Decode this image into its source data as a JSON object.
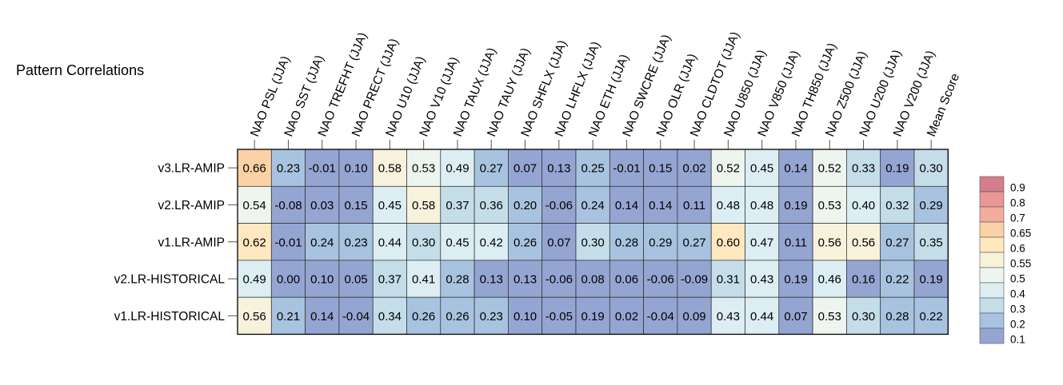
{
  "chart_data": {
    "type": "heatmap",
    "title": "Pattern Correlations",
    "xlabel": "",
    "ylabel": "",
    "columns": [
      "NAO PSL (JJA)",
      "NAO SST (JJA)",
      "NAO TREFHT (JJA)",
      "NAO PRECT (JJA)",
      "NAO U10 (JJA)",
      "NAO V10 (JJA)",
      "NAO TAUX (JJA)",
      "NAO TAUY (JJA)",
      "NAO SHFLX (JJA)",
      "NAO LHFLX (JJA)",
      "NAO ETH (JJA)",
      "NAO SWCRE (JJA)",
      "NAO OLR (JJA)",
      "NAO CLDTOT (JJA)",
      "NAO U850 (JJA)",
      "NAO V850 (JJA)",
      "NAO TH850 (JJA)",
      "NAO Z500 (JJA)",
      "NAO U200 (JJA)",
      "NAO V200 (JJA)",
      "Mean Score"
    ],
    "rows": [
      "v3.LR-AMIP",
      "v2.LR-AMIP",
      "v1.LR-AMIP",
      "v2.LR-HISTORICAL",
      "v1.LR-HISTORICAL"
    ],
    "values": [
      [
        "0.66",
        "0.23",
        "-0.01",
        "0.10",
        "0.58",
        "0.53",
        "0.49",
        "0.27",
        "0.07",
        "0.13",
        "0.25",
        "-0.01",
        "0.15",
        "0.02",
        "0.52",
        "0.45",
        "0.14",
        "0.52",
        "0.33",
        "0.19",
        "0.30"
      ],
      [
        "0.54",
        "-0.08",
        "0.03",
        "0.15",
        "0.45",
        "0.58",
        "0.37",
        "0.36",
        "0.20",
        "-0.06",
        "0.24",
        "0.14",
        "0.14",
        "0.11",
        "0.48",
        "0.48",
        "0.19",
        "0.53",
        "0.40",
        "0.32",
        "0.29"
      ],
      [
        "0.62",
        "-0.01",
        "0.24",
        "0.23",
        "0.44",
        "0.30",
        "0.45",
        "0.42",
        "0.26",
        "0.07",
        "0.30",
        "0.28",
        "0.29",
        "0.27",
        "0.60",
        "0.47",
        "0.11",
        "0.56",
        "0.56",
        "0.27",
        "0.35"
      ],
      [
        "0.49",
        "0.00",
        "0.10",
        "0.05",
        "0.37",
        "0.41",
        "0.28",
        "0.13",
        "0.13",
        "-0.06",
        "0.08",
        "0.06",
        "-0.06",
        "-0.09",
        "0.31",
        "0.43",
        "0.19",
        "0.46",
        "0.16",
        "0.22",
        "0.19"
      ],
      [
        "0.56",
        "0.21",
        "0.14",
        "-0.04",
        "0.34",
        "0.26",
        "0.26",
        "0.23",
        "0.10",
        "-0.05",
        "0.19",
        "0.02",
        "-0.04",
        "0.09",
        "0.43",
        "0.44",
        "0.07",
        "0.53",
        "0.30",
        "0.28",
        "0.22"
      ]
    ],
    "legend": {
      "placement": "right",
      "labels": [
        "0.9",
        "0.8",
        "0.7",
        "0.65",
        "0.6",
        "0.55",
        "0.5",
        "0.4",
        "0.3",
        "0.2",
        "0.1"
      ],
      "colors": [
        "#d57d8d",
        "#e99697",
        "#f2ad9e",
        "#fbd2a6",
        "#fde8c0",
        "#f8f2dc",
        "#eef5ef",
        "#dcedf3",
        "#c4dde9",
        "#a8c3df",
        "#95a5d2"
      ]
    }
  }
}
